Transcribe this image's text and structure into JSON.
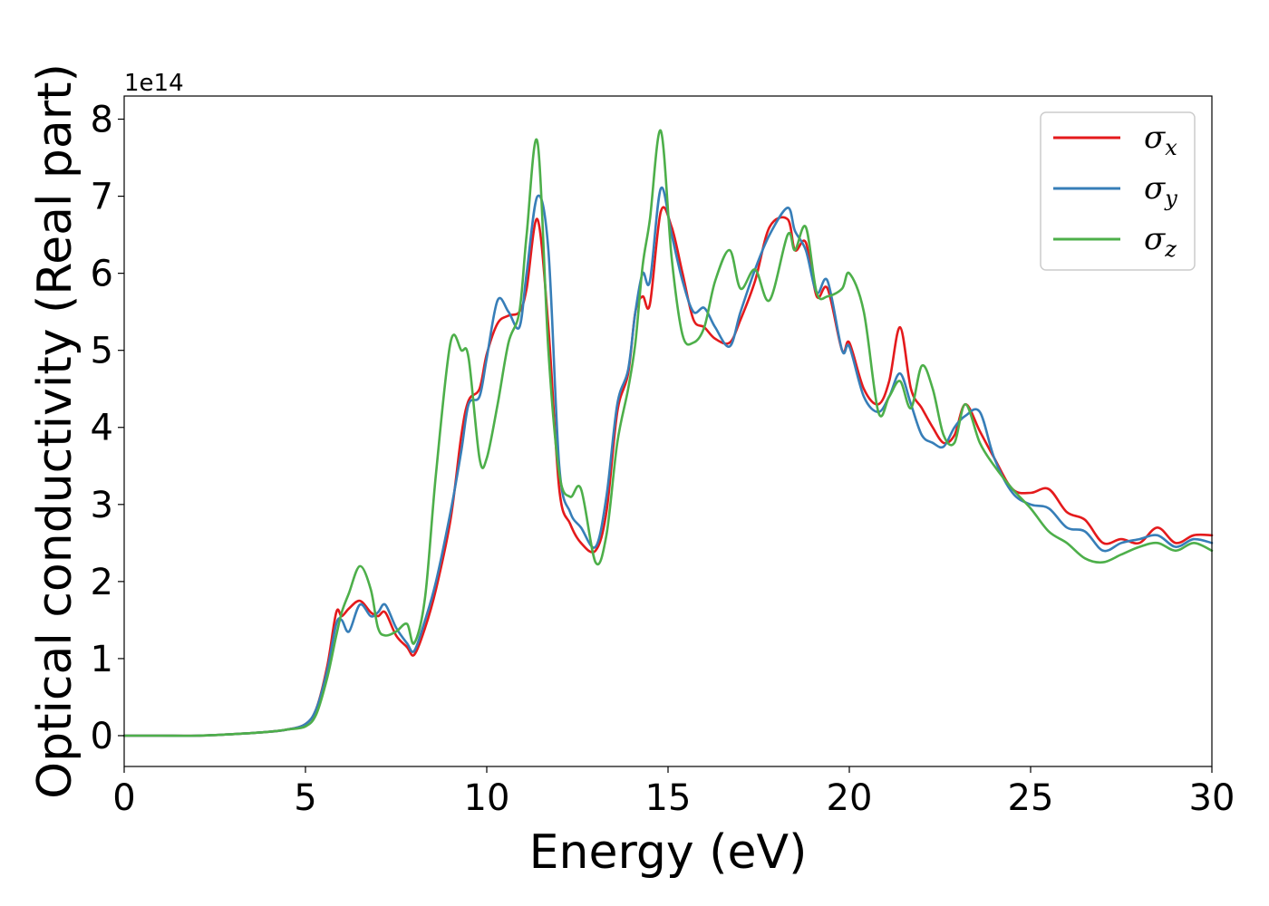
{
  "chart_data": {
    "type": "line",
    "title": "",
    "xlabel": "Energy (eV)",
    "ylabel": "Optical conductivity (Real part)",
    "y_offset_label": "1e14",
    "xlim": [
      0,
      30
    ],
    "ylim": [
      -0.4,
      8.3
    ],
    "x_ticks": [
      0,
      5,
      10,
      15,
      20,
      25,
      30
    ],
    "y_ticks": [
      0,
      1,
      2,
      3,
      4,
      5,
      6,
      7,
      8
    ],
    "grid": false,
    "legend_position": "top-right",
    "series": [
      {
        "name": "σx",
        "base": "σ",
        "sub": "x",
        "color": "#e41a1c",
        "x": [
          0,
          1,
          2,
          3,
          4,
          4.5,
          5,
          5.3,
          5.6,
          5.85,
          6.0,
          6.2,
          6.5,
          6.8,
          7.0,
          7.2,
          7.5,
          7.8,
          8.0,
          8.3,
          8.6,
          9.0,
          9.3,
          9.5,
          9.8,
          10.0,
          10.3,
          10.6,
          10.9,
          11.1,
          11.4,
          11.7,
          12.0,
          12.3,
          12.6,
          13.0,
          13.3,
          13.6,
          13.9,
          14.1,
          14.3,
          14.5,
          14.8,
          15.1,
          15.4,
          15.7,
          16.0,
          16.3,
          16.7,
          17.0,
          17.4,
          17.8,
          18.3,
          18.5,
          18.8,
          19.1,
          19.4,
          19.8,
          20.0,
          20.4,
          20.8,
          21.1,
          21.4,
          21.7,
          22.0,
          22.3,
          22.6,
          22.9,
          23.2,
          23.6,
          24.0,
          24.5,
          25.0,
          25.5,
          26.0,
          26.5,
          27.0,
          27.5,
          28.0,
          28.5,
          29.0,
          29.5,
          30.0
        ],
        "values": [
          0,
          0,
          0,
          0.02,
          0.05,
          0.08,
          0.15,
          0.35,
          0.9,
          1.6,
          1.55,
          1.65,
          1.75,
          1.6,
          1.55,
          1.6,
          1.3,
          1.15,
          1.05,
          1.4,
          1.9,
          2.8,
          3.9,
          4.35,
          4.5,
          4.95,
          5.35,
          5.45,
          5.5,
          5.8,
          6.7,
          5.3,
          3.2,
          2.75,
          2.5,
          2.4,
          2.9,
          4.2,
          4.7,
          5.5,
          5.7,
          5.6,
          6.8,
          6.6,
          6.0,
          5.4,
          5.3,
          5.15,
          5.1,
          5.4,
          5.9,
          6.6,
          6.7,
          6.3,
          6.4,
          5.7,
          5.8,
          5.0,
          5.1,
          4.5,
          4.3,
          4.6,
          5.3,
          4.5,
          4.25,
          4.0,
          3.8,
          3.9,
          4.3,
          3.95,
          3.6,
          3.2,
          3.15,
          3.2,
          2.9,
          2.8,
          2.5,
          2.55,
          2.5,
          2.7,
          2.5,
          2.6,
          2.6
        ]
      },
      {
        "name": "σy",
        "base": "σ",
        "sub": "y",
        "color": "#377eb8",
        "x": [
          0,
          1,
          2,
          3,
          4,
          4.5,
          5,
          5.3,
          5.6,
          5.85,
          6.0,
          6.2,
          6.5,
          6.8,
          7.0,
          7.2,
          7.5,
          7.8,
          8.0,
          8.3,
          8.6,
          9.0,
          9.3,
          9.5,
          9.8,
          10.0,
          10.3,
          10.6,
          10.9,
          11.1,
          11.4,
          11.7,
          12.0,
          12.3,
          12.6,
          13.0,
          13.3,
          13.6,
          13.9,
          14.1,
          14.3,
          14.5,
          14.8,
          15.1,
          15.4,
          15.7,
          16.0,
          16.3,
          16.7,
          17.0,
          17.4,
          17.8,
          18.3,
          18.5,
          18.8,
          19.1,
          19.4,
          19.8,
          20.0,
          20.4,
          20.8,
          21.1,
          21.4,
          21.7,
          22.0,
          22.3,
          22.6,
          22.9,
          23.2,
          23.6,
          24.0,
          24.5,
          25.0,
          25.5,
          26.0,
          26.5,
          27.0,
          27.5,
          28.0,
          28.5,
          29.0,
          29.5,
          30.0
        ],
        "values": [
          0,
          0,
          0,
          0.02,
          0.05,
          0.08,
          0.15,
          0.35,
          0.85,
          1.45,
          1.5,
          1.35,
          1.7,
          1.55,
          1.6,
          1.7,
          1.4,
          1.2,
          1.1,
          1.5,
          2.0,
          2.9,
          3.7,
          4.3,
          4.4,
          4.9,
          5.65,
          5.5,
          5.3,
          6.0,
          7.0,
          6.3,
          3.5,
          2.9,
          2.7,
          2.45,
          3.1,
          4.3,
          4.75,
          5.5,
          6.0,
          5.9,
          7.1,
          6.5,
          5.9,
          5.5,
          5.55,
          5.3,
          5.05,
          5.5,
          6.05,
          6.5,
          6.85,
          6.55,
          6.3,
          5.75,
          5.9,
          5.0,
          5.05,
          4.4,
          4.2,
          4.4,
          4.7,
          4.3,
          3.9,
          3.8,
          3.75,
          4.0,
          4.15,
          4.2,
          3.6,
          3.15,
          3.0,
          2.95,
          2.7,
          2.65,
          2.4,
          2.5,
          2.55,
          2.6,
          2.45,
          2.55,
          2.5
        ]
      },
      {
        "name": "σz",
        "base": "σ",
        "sub": "z",
        "color": "#4daf4a",
        "x": [
          0,
          1,
          2,
          3,
          4,
          4.5,
          5,
          5.3,
          5.6,
          5.85,
          6.0,
          6.2,
          6.5,
          6.8,
          7.0,
          7.2,
          7.5,
          7.8,
          8.0,
          8.3,
          8.6,
          9.0,
          9.3,
          9.5,
          9.8,
          10.0,
          10.3,
          10.6,
          10.9,
          11.1,
          11.4,
          11.7,
          12.0,
          12.3,
          12.6,
          13.0,
          13.3,
          13.6,
          13.9,
          14.1,
          14.3,
          14.5,
          14.8,
          15.1,
          15.4,
          15.7,
          16.0,
          16.3,
          16.7,
          17.0,
          17.4,
          17.8,
          18.3,
          18.5,
          18.8,
          19.1,
          19.4,
          19.8,
          20.0,
          20.4,
          20.8,
          21.1,
          21.4,
          21.7,
          22.0,
          22.3,
          22.6,
          22.9,
          23.2,
          23.6,
          24.0,
          24.5,
          25.0,
          25.5,
          26.0,
          26.5,
          27.0,
          27.5,
          28.0,
          28.5,
          29.0,
          29.5,
          30.0
        ],
        "values": [
          0,
          0,
          0,
          0.02,
          0.05,
          0.08,
          0.12,
          0.28,
          0.75,
          1.3,
          1.6,
          1.85,
          2.2,
          1.9,
          1.4,
          1.3,
          1.35,
          1.45,
          1.2,
          1.8,
          3.4,
          5.1,
          5.0,
          4.9,
          3.6,
          3.6,
          4.3,
          5.1,
          5.5,
          6.5,
          7.7,
          5.0,
          3.4,
          3.1,
          3.2,
          2.25,
          2.6,
          3.8,
          4.5,
          5.1,
          6.1,
          6.7,
          7.85,
          6.2,
          5.2,
          5.1,
          5.3,
          5.9,
          6.3,
          5.8,
          6.05,
          5.65,
          6.5,
          6.3,
          6.6,
          5.75,
          5.7,
          5.8,
          6.0,
          5.5,
          4.2,
          4.4,
          4.6,
          4.25,
          4.8,
          4.5,
          3.9,
          3.8,
          4.3,
          3.8,
          3.5,
          3.2,
          2.95,
          2.65,
          2.5,
          2.3,
          2.25,
          2.35,
          2.45,
          2.5,
          2.4,
          2.5,
          2.4
        ]
      }
    ]
  }
}
